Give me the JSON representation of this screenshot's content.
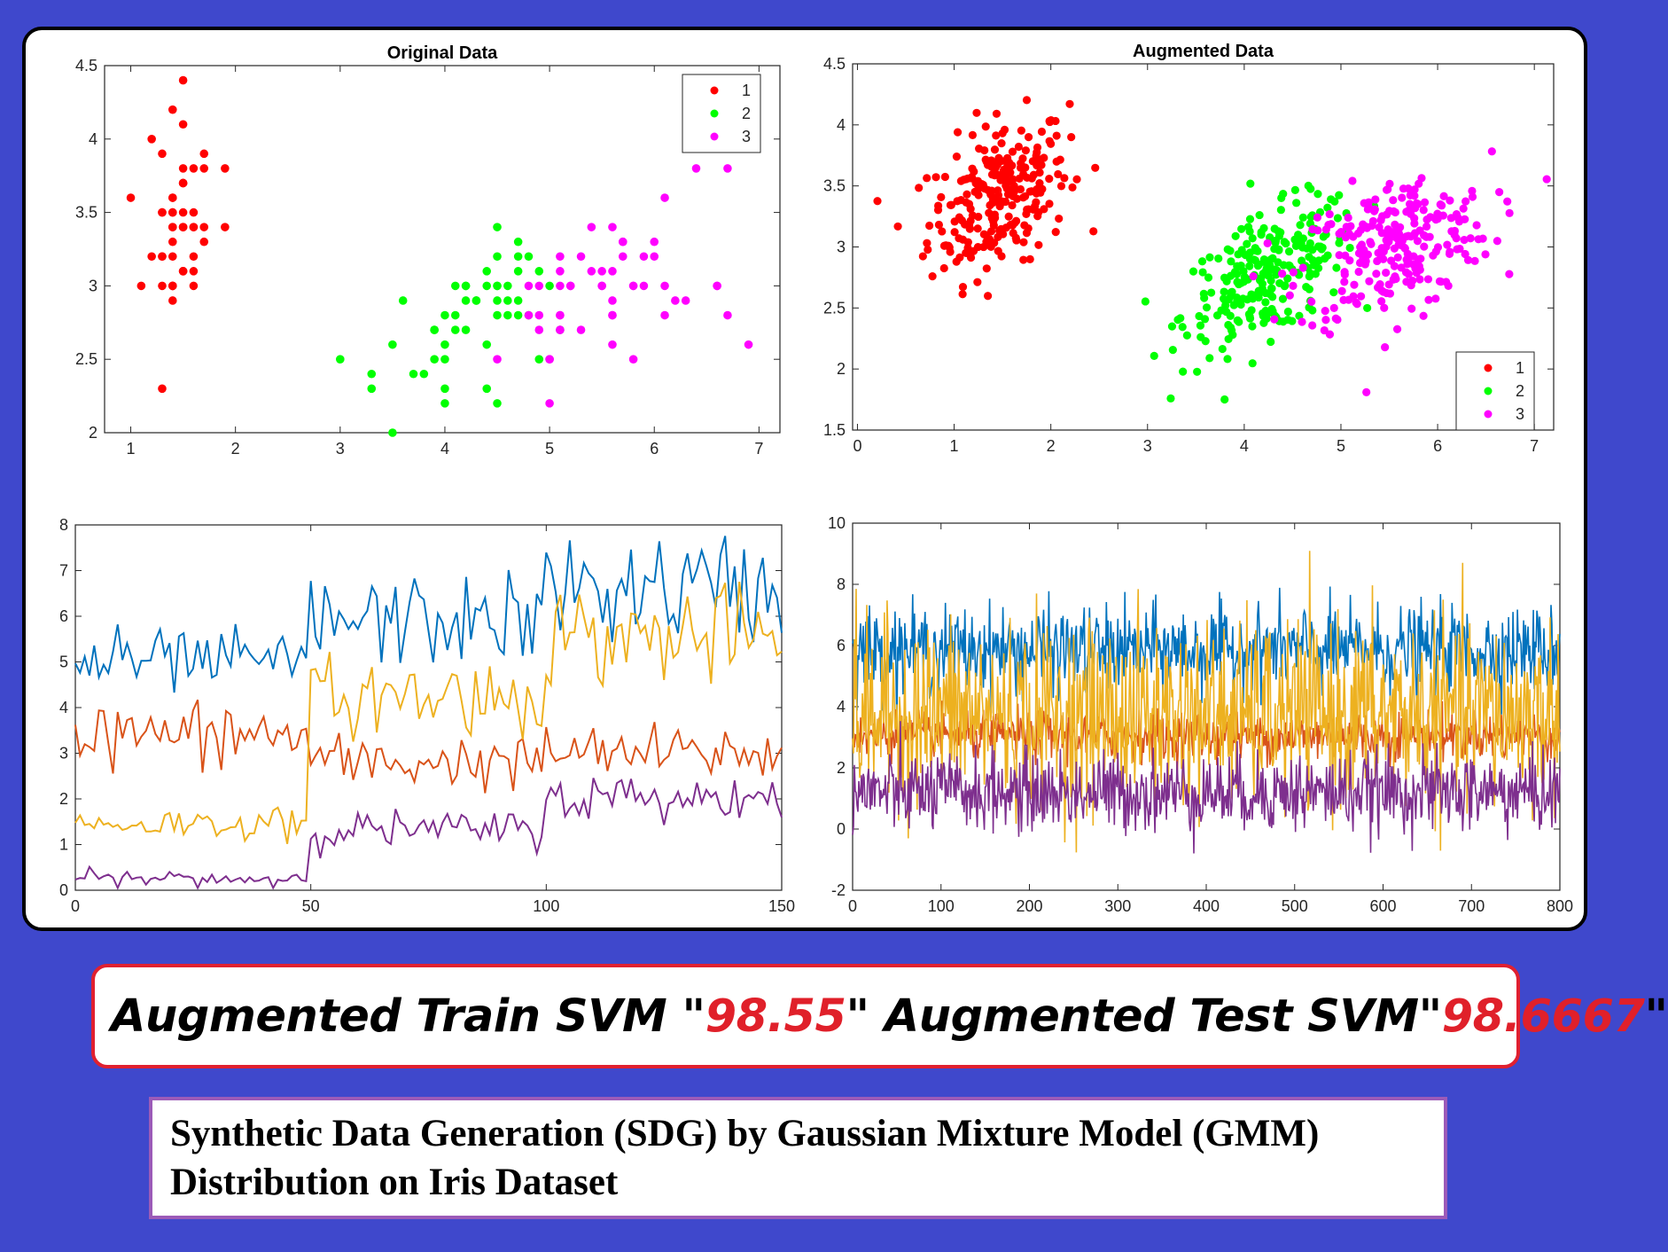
{
  "banner": {
    "part1": "Augmented Train SVM \"",
    "train_value": "98.55",
    "part2": "\" Augmented Test SVM\"",
    "test_value": "98.6667",
    "part3": "\""
  },
  "caption": {
    "line1": "Synthetic Data Generation (SDG) by Gaussian Mixture Model (GMM)",
    "line2": "Distribution on Iris Dataset"
  },
  "colors": {
    "class1": "#ff0000",
    "class2": "#00ff00",
    "class3": "#ff00ff",
    "line1": "#0072bd",
    "line2": "#d95319",
    "line3": "#edb120",
    "line4": "#7e2f8e"
  },
  "chart_data": [
    {
      "type": "scatter",
      "title": "Original Data",
      "xlim": [
        0.75,
        7.2
      ],
      "ylim": [
        2,
        4.5
      ],
      "xticks": [
        1,
        2,
        3,
        4,
        5,
        6,
        7
      ],
      "yticks": [
        2,
        2.5,
        3,
        3.5,
        4,
        4.5
      ],
      "legend": "top-right",
      "grid": false,
      "series": [
        {
          "name": "1",
          "color": "#ff0000",
          "points": [
            [
              1.4,
              3.5
            ],
            [
              1.4,
              3.0
            ],
            [
              1.3,
              3.2
            ],
            [
              1.5,
              3.1
            ],
            [
              1.4,
              3.6
            ],
            [
              1.7,
              3.9
            ],
            [
              1.4,
              3.4
            ],
            [
              1.5,
              3.4
            ],
            [
              1.4,
              2.9
            ],
            [
              1.5,
              3.1
            ],
            [
              1.5,
              3.7
            ],
            [
              1.6,
              3.4
            ],
            [
              1.4,
              3.0
            ],
            [
              1.1,
              3.0
            ],
            [
              1.2,
              4.0
            ],
            [
              1.5,
              4.4
            ],
            [
              1.3,
              3.9
            ],
            [
              1.4,
              3.5
            ],
            [
              1.7,
              3.8
            ],
            [
              1.5,
              3.8
            ],
            [
              1.7,
              3.4
            ],
            [
              1.5,
              3.7
            ],
            [
              1.0,
              3.6
            ],
            [
              1.7,
              3.3
            ],
            [
              1.9,
              3.4
            ],
            [
              1.6,
              3.0
            ],
            [
              1.6,
              3.4
            ],
            [
              1.5,
              3.5
            ],
            [
              1.4,
              3.4
            ],
            [
              1.6,
              3.2
            ],
            [
              1.6,
              3.1
            ],
            [
              1.5,
              3.4
            ],
            [
              1.5,
              4.1
            ],
            [
              1.4,
              4.2
            ],
            [
              1.5,
              3.1
            ],
            [
              1.2,
              3.2
            ],
            [
              1.3,
              3.5
            ],
            [
              1.4,
              3.6
            ],
            [
              1.3,
              3.0
            ],
            [
              1.5,
              3.4
            ],
            [
              1.3,
              3.5
            ],
            [
              1.3,
              2.3
            ],
            [
              1.3,
              3.2
            ],
            [
              1.6,
              3.5
            ],
            [
              1.9,
              3.8
            ],
            [
              1.4,
              3.0
            ],
            [
              1.6,
              3.8
            ],
            [
              1.4,
              3.2
            ],
            [
              1.5,
              3.7
            ],
            [
              1.4,
              3.3
            ]
          ]
        },
        {
          "name": "2",
          "color": "#00ff00",
          "points": [
            [
              4.7,
              3.2
            ],
            [
              4.5,
              3.2
            ],
            [
              4.9,
              3.1
            ],
            [
              4.0,
              2.3
            ],
            [
              4.6,
              2.8
            ],
            [
              4.5,
              2.8
            ],
            [
              4.7,
              3.3
            ],
            [
              3.3,
              2.4
            ],
            [
              4.6,
              2.9
            ],
            [
              3.9,
              2.7
            ],
            [
              3.5,
              2.0
            ],
            [
              4.2,
              3.0
            ],
            [
              4.0,
              2.2
            ],
            [
              4.7,
              2.9
            ],
            [
              3.6,
              2.9
            ],
            [
              4.4,
              3.1
            ],
            [
              4.5,
              3.0
            ],
            [
              4.1,
              2.7
            ],
            [
              4.5,
              2.2
            ],
            [
              3.9,
              2.5
            ],
            [
              4.8,
              3.2
            ],
            [
              4.0,
              2.8
            ],
            [
              4.9,
              2.5
            ],
            [
              4.7,
              2.8
            ],
            [
              4.3,
              2.9
            ],
            [
              4.4,
              3.0
            ],
            [
              4.8,
              2.8
            ],
            [
              5.0,
              3.0
            ],
            [
              4.5,
              2.9
            ],
            [
              3.5,
              2.6
            ],
            [
              3.8,
              2.4
            ],
            [
              3.7,
              2.4
            ],
            [
              3.9,
              2.7
            ],
            [
              5.1,
              2.7
            ],
            [
              4.5,
              3.0
            ],
            [
              4.5,
              3.4
            ],
            [
              4.7,
              3.1
            ],
            [
              4.4,
              2.3
            ],
            [
              4.1,
              3.0
            ],
            [
              4.0,
              2.5
            ],
            [
              4.4,
              2.6
            ],
            [
              4.6,
              3.0
            ],
            [
              4.0,
              2.6
            ],
            [
              3.3,
              2.3
            ],
            [
              4.2,
              2.7
            ],
            [
              4.2,
              3.0
            ],
            [
              4.2,
              2.9
            ],
            [
              4.3,
              2.9
            ],
            [
              3.0,
              2.5
            ],
            [
              4.1,
              2.8
            ]
          ]
        },
        {
          "name": "3",
          "color": "#ff00ff",
          "points": [
            [
              6.0,
              3.3
            ],
            [
              5.1,
              2.7
            ],
            [
              5.9,
              3.0
            ],
            [
              5.6,
              2.9
            ],
            [
              5.8,
              3.0
            ],
            [
              6.6,
              3.0
            ],
            [
              4.5,
              2.5
            ],
            [
              6.3,
              2.9
            ],
            [
              5.8,
              2.5
            ],
            [
              6.1,
              3.6
            ],
            [
              5.1,
              3.2
            ],
            [
              5.3,
              2.7
            ],
            [
              5.5,
              3.0
            ],
            [
              5.0,
              2.5
            ],
            [
              5.1,
              2.8
            ],
            [
              5.3,
              3.2
            ],
            [
              5.5,
              3.0
            ],
            [
              6.7,
              3.8
            ],
            [
              6.9,
              2.6
            ],
            [
              5.0,
              2.2
            ],
            [
              5.7,
              3.2
            ],
            [
              4.9,
              2.8
            ],
            [
              6.7,
              2.8
            ],
            [
              4.9,
              2.7
            ],
            [
              5.7,
              3.3
            ],
            [
              6.0,
              3.2
            ],
            [
              4.8,
              2.8
            ],
            [
              4.9,
              3.0
            ],
            [
              5.6,
              2.8
            ],
            [
              5.8,
              3.0
            ],
            [
              6.1,
              2.8
            ],
            [
              6.4,
              3.8
            ],
            [
              5.6,
              2.8
            ],
            [
              5.1,
              2.8
            ],
            [
              5.6,
              2.6
            ],
            [
              6.1,
              3.0
            ],
            [
              5.6,
              3.4
            ],
            [
              5.5,
              3.1
            ],
            [
              4.8,
              3.0
            ],
            [
              5.4,
              3.1
            ],
            [
              5.6,
              3.1
            ],
            [
              5.1,
              3.1
            ],
            [
              5.1,
              2.7
            ],
            [
              5.9,
              3.2
            ],
            [
              5.7,
              3.3
            ],
            [
              5.2,
              3.0
            ],
            [
              5.0,
              2.5
            ],
            [
              5.2,
              3.0
            ],
            [
              5.4,
              3.4
            ],
            [
              5.1,
              3.0
            ],
            [
              6.2,
              2.9
            ],
            [
              6.6,
              3.0
            ]
          ]
        }
      ]
    },
    {
      "type": "scatter",
      "title": "Augmented Data",
      "xlim": [
        -0.05,
        7.2
      ],
      "ylim": [
        1.5,
        4.5
      ],
      "xticks": [
        0,
        1,
        2,
        3,
        4,
        5,
        6,
        7
      ],
      "yticks": [
        1.5,
        2,
        2.5,
        3,
        3.5,
        4,
        4.5
      ],
      "legend": "bottom-right",
      "grid": false,
      "clusters": [
        {
          "name": "1",
          "color": "#ff0000",
          "count": 250,
          "mean": [
            1.46,
            3.42
          ],
          "sd": [
            0.36,
            0.32
          ],
          "corr": 0.35
        },
        {
          "name": "2",
          "color": "#00ff00",
          "count": 250,
          "mean": [
            4.26,
            2.77
          ],
          "sd": [
            0.45,
            0.3
          ],
          "corr": 0.55
        },
        {
          "name": "3",
          "color": "#ff00ff",
          "count": 250,
          "mean": [
            5.55,
            3.0
          ],
          "sd": [
            0.5,
            0.3
          ],
          "corr": 0.35
        }
      ]
    },
    {
      "type": "line",
      "title": "",
      "xlim": [
        0,
        150
      ],
      "ylim": [
        0,
        8
      ],
      "xticks": [
        0,
        50,
        100,
        150
      ],
      "yticks": [
        0,
        1,
        2,
        3,
        4,
        5,
        6,
        7,
        8
      ],
      "grid": false,
      "series": [
        {
          "color": "#0072bd",
          "segments": [
            {
              "from": 0,
              "to": 50,
              "mean": 5.0,
              "sd": 0.35
            },
            {
              "from": 50,
              "to": 100,
              "mean": 5.9,
              "sd": 0.5
            },
            {
              "from": 100,
              "to": 150,
              "mean": 6.6,
              "sd": 0.6
            }
          ]
        },
        {
          "color": "#d95319",
          "segments": [
            {
              "from": 0,
              "to": 50,
              "mean": 3.4,
              "sd": 0.38
            },
            {
              "from": 50,
              "to": 100,
              "mean": 2.8,
              "sd": 0.3
            },
            {
              "from": 100,
              "to": 150,
              "mean": 3.0,
              "sd": 0.3
            }
          ]
        },
        {
          "color": "#edb120",
          "segments": [
            {
              "from": 0,
              "to": 50,
              "mean": 1.46,
              "sd": 0.17
            },
            {
              "from": 50,
              "to": 100,
              "mean": 4.25,
              "sd": 0.45
            },
            {
              "from": 100,
              "to": 150,
              "mean": 5.55,
              "sd": 0.55
            }
          ]
        },
        {
          "color": "#7e2f8e",
          "segments": [
            {
              "from": 0,
              "to": 50,
              "mean": 0.25,
              "sd": 0.1
            },
            {
              "from": 50,
              "to": 100,
              "mean": 1.33,
              "sd": 0.2
            },
            {
              "from": 100,
              "to": 150,
              "mean": 2.03,
              "sd": 0.27
            }
          ]
        }
      ]
    },
    {
      "type": "line",
      "title": "",
      "xlim": [
        0,
        800
      ],
      "ylim": [
        -2,
        10
      ],
      "xticks": [
        0,
        100,
        200,
        300,
        400,
        500,
        600,
        700,
        800
      ],
      "yticks": [
        -2,
        0,
        2,
        4,
        6,
        8,
        10
      ],
      "grid": false,
      "series": [
        {
          "color": "#0072bd",
          "mean": 5.85,
          "sd": 0.7
        },
        {
          "color": "#d95319",
          "mean": 3.05,
          "sd": 0.4
        },
        {
          "color": "#edb120",
          "mean": 3.75,
          "sd": 1.5
        },
        {
          "color": "#7e2f8e",
          "mean": 1.2,
          "sd": 0.65
        }
      ]
    }
  ]
}
